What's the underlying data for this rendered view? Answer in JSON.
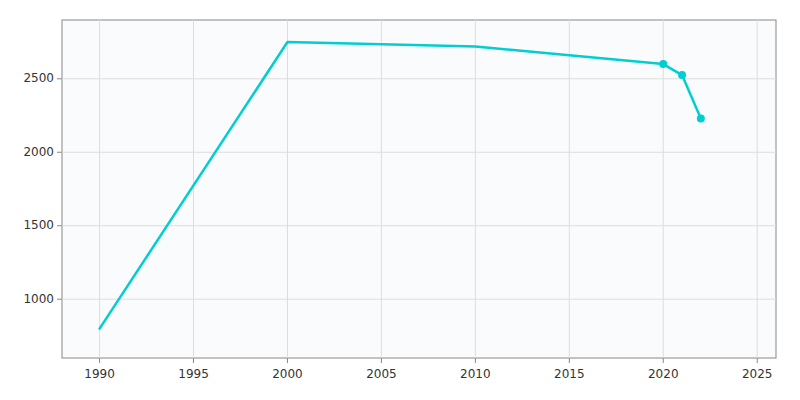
{
  "chart_data": {
    "type": "line",
    "x": [
      1990,
      2000,
      2010,
      2015,
      2020,
      2021,
      2022
    ],
    "series": [
      {
        "values": [
          800,
          2750,
          2720,
          2660,
          2600,
          2525,
          2230
        ],
        "color": "#00CED1"
      },
      {
        "type": "scatter",
        "marker": "circle",
        "color": "#00CED1",
        "values": [
          null,
          null,
          null,
          null,
          2600,
          2525,
          2230
        ]
      }
    ],
    "xlim": [
      1988,
      2026
    ],
    "ylim": [
      600,
      2900
    ],
    "xticks": [
      1990,
      1995,
      2000,
      2005,
      2010,
      2015,
      2020,
      2025
    ],
    "yticks": [
      1000,
      1500,
      2000,
      2500
    ],
    "grid": true
  }
}
